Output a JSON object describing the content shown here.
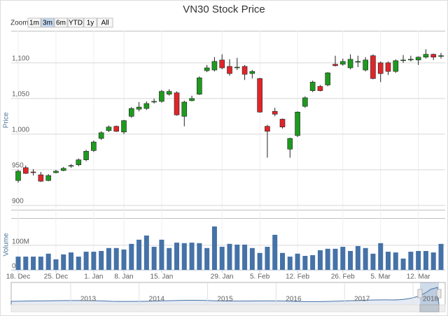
{
  "chart_data": {
    "type": "candlestick",
    "title": "VN30 Stock Price",
    "zoom": {
      "label": "Zoom",
      "buttons": [
        "1m",
        "3m",
        "6m",
        "YTD",
        "1y",
        "All"
      ],
      "selected": "3m"
    },
    "y_label": "Price",
    "y2_label": "Volume",
    "categories": [
      "18. Dec",
      null,
      null,
      null,
      null,
      "25. Dec",
      null,
      null,
      null,
      null,
      "1. Jan",
      null,
      null,
      null,
      "8. Jan",
      null,
      null,
      null,
      null,
      "15. Jan",
      null,
      null,
      null,
      null,
      null,
      null,
      null,
      "29. Jan",
      null,
      null,
      null,
      null,
      "5. Feb",
      null,
      null,
      null,
      null,
      "12. Feb",
      null,
      null,
      null,
      null,
      null,
      "26. Feb",
      null,
      null,
      null,
      null,
      "5. Mar",
      null,
      null,
      null,
      null,
      "12. Mar",
      null,
      null,
      null
    ],
    "open": [
      935,
      953,
      947,
      943,
      935,
      946,
      949,
      955,
      957,
      964,
      977,
      994,
      1005,
      1011,
      1003,
      1025,
      1035,
      1036,
      1045,
      1046,
      1056,
      1058,
      1025,
      1047,
      1056,
      1089,
      1090,
      1104,
      1095,
      1093,
      1095,
      1085,
      1078,
      1011,
      1032,
      1021,
      979,
      998,
      1039,
      1061,
      1067,
      1069,
      1098,
      1098,
      1093,
      1101,
      1090,
      1110,
      1100,
      1100,
      1088,
      1103,
      1104,
      1104,
      1108,
      1112,
      1109
    ],
    "high": [
      950,
      956,
      951,
      947,
      944,
      950,
      954,
      958,
      966,
      978,
      991,
      1004,
      1012,
      1012,
      1020,
      1038,
      1045,
      1046,
      1050,
      1062,
      1063,
      1060,
      1047,
      1054,
      1081,
      1097,
      1108,
      1112,
      1105,
      1107,
      1097,
      1090,
      1079,
      1013,
      1037,
      1022,
      995,
      1032,
      1053,
      1075,
      1069,
      1087,
      1110,
      1106,
      1112,
      1110,
      1108,
      1112,
      1102,
      1102,
      1105,
      1111,
      1110,
      1109,
      1119,
      1113,
      1114
    ],
    "low": [
      932,
      944,
      942,
      933,
      934,
      945,
      948,
      953,
      955,
      962,
      975,
      992,
      1003,
      1003,
      1000,
      1023,
      1032,
      1034,
      1043,
      1044,
      1054,
      1026,
      1011,
      1046,
      1055,
      1087,
      1088,
      1091,
      1082,
      1090,
      1076,
      1078,
      1030,
      967,
      1025,
      1008,
      967,
      996,
      1037,
      1059,
      1060,
      1067,
      1095,
      1096,
      1091,
      1094,
      1088,
      1077,
      1073,
      1083,
      1086,
      1100,
      1102,
      1097,
      1106,
      1104,
      1106
    ],
    "close": [
      948,
      945,
      946,
      934,
      942,
      948,
      952,
      956,
      964,
      976,
      989,
      1002,
      1010,
      1004,
      1019,
      1036,
      1038,
      1043,
      1046,
      1060,
      1060,
      1027,
      1045,
      1050,
      1079,
      1093,
      1102,
      1093,
      1085,
      1094,
      1084,
      1088,
      1031,
      1004,
      1028,
      1010,
      994,
      1031,
      1051,
      1073,
      1061,
      1086,
      1096,
      1102,
      1105,
      1102,
      1104,
      1078,
      1085,
      1088,
      1103,
      1104,
      1105,
      1108,
      1112,
      1108,
      1110
    ],
    "volume": [
      54,
      54,
      54,
      54,
      66,
      43,
      63,
      71,
      54,
      74,
      74,
      77,
      89,
      89,
      83,
      106,
      123,
      140,
      94,
      123,
      89,
      111,
      109,
      111,
      109,
      89,
      177,
      94,
      106,
      103,
      103,
      89,
      69,
      94,
      143,
      69,
      54,
      66,
      57,
      60,
      80,
      86,
      86,
      94,
      77,
      97,
      89,
      66,
      109,
      74,
      71,
      46,
      74,
      77,
      77,
      71,
      106
    ],
    "up_color": "#1e9a1e",
    "down_color": "#e0252a",
    "volume_color": "#4572a7",
    "ylim": [
      894,
      1145
    ],
    "yticks": [
      900,
      950,
      {
        "value": 1000,
        "label": "1,000"
      },
      {
        "value": 1050,
        "label": "1,050"
      },
      {
        "value": 1100,
        "label": "1,100"
      }
    ],
    "y2lim": [
      0,
      211
    ],
    "y2ticks": [
      0,
      {
        "value": 100,
        "label": "100M"
      }
    ],
    "grid": true,
    "navigator": {
      "labels": [
        "2013",
        "2014",
        "2015",
        "2016",
        "2017",
        "2018"
      ]
    }
  }
}
